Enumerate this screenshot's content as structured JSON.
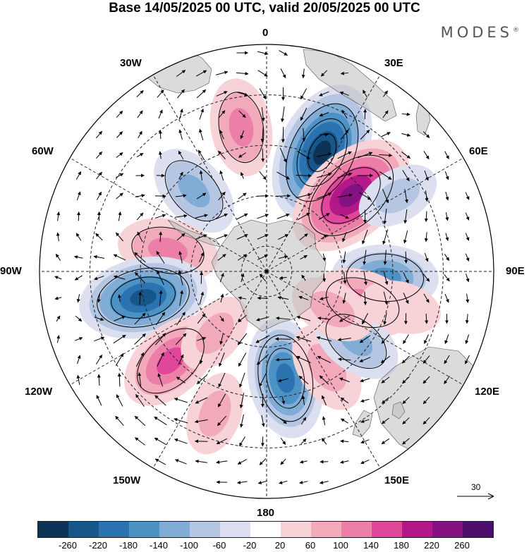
{
  "title": "Base 14/05/2025 00 UTC, valid 20/05/2025 00 UTC",
  "brand": "MODES",
  "brand_mark": "®",
  "longitude_labels": {
    "n0": "0",
    "e30": "30E",
    "e60": "60E",
    "e90": "90E",
    "e120": "120E",
    "e150": "150E",
    "s180": "180",
    "w150": "150W",
    "w120": "120W",
    "w90": "90W",
    "w60": "60W",
    "w30": "30W"
  },
  "reference_vector": {
    "label": "30"
  },
  "colorbar": {
    "ticks": [
      "-260",
      "-220",
      "-180",
      "-140",
      "-100",
      "-60",
      "-20",
      "20",
      "60",
      "100",
      "140",
      "180",
      "220",
      "260"
    ],
    "colors": [
      "#0d3356",
      "#17568a",
      "#2b72b0",
      "#4d92c5",
      "#80acd5",
      "#b5c6e2",
      "#dcdff0",
      "#ffffff",
      "#f7d2d6",
      "#f2a9b9",
      "#ec7fa8",
      "#e0479a",
      "#b21888",
      "#861183",
      "#4c0d6b"
    ]
  },
  "anomalies": [
    {
      "lat": -38,
      "lon": 25,
      "value": -270
    },
    {
      "lat": -45,
      "lon": 48,
      "value": 250
    },
    {
      "lat": -32,
      "lon": -10,
      "value": 110
    },
    {
      "lat": -47,
      "lon": -42,
      "value": -110
    },
    {
      "lat": -50,
      "lon": -78,
      "value": 120
    },
    {
      "lat": -40,
      "lon": -102,
      "value": -220
    },
    {
      "lat": -38,
      "lon": -133,
      "value": 150
    },
    {
      "lat": -47,
      "lon": 170,
      "value": -190
    },
    {
      "lat": -45,
      "lon": 148,
      "value": 90
    },
    {
      "lat": -43,
      "lon": 93,
      "value": -140
    },
    {
      "lat": -50,
      "lon": 108,
      "value": 130
    },
    {
      "lat": -45,
      "lon": 128,
      "value": -100
    },
    {
      "lat": -60,
      "lon": 120,
      "value": 70
    },
    {
      "lat": -58,
      "lon": -140,
      "value": 60
    },
    {
      "lat": -35,
      "lon": 105,
      "value": 50
    },
    {
      "lat": -30,
      "lon": 60,
      "value": -60
    },
    {
      "lat": -30,
      "lon": -160,
      "value": 60
    }
  ]
}
